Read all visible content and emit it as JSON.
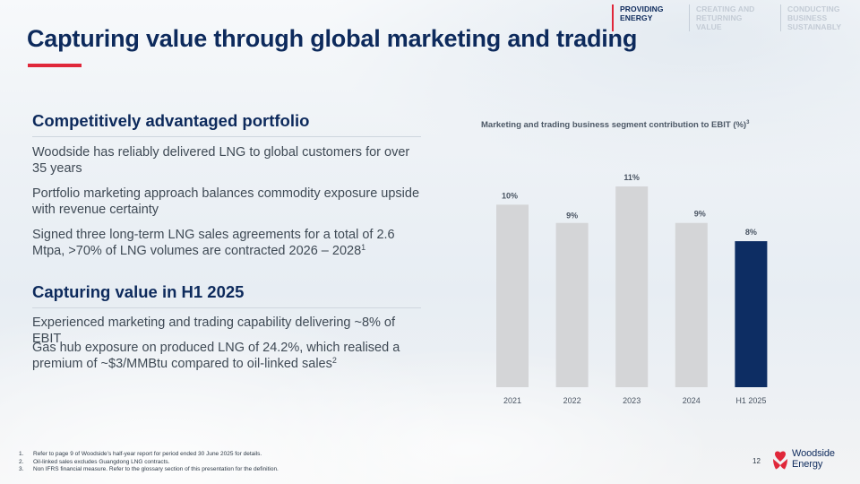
{
  "nav": {
    "items": [
      {
        "label": "PROVIDING\nENERGY",
        "active": true
      },
      {
        "label": "CREATING AND\nRETURNING VALUE",
        "active": false
      },
      {
        "label": "CONDUCTING BUSINESS\nSUSTAINABLY",
        "active": false
      }
    ]
  },
  "title": "Capturing value through global marketing and trading",
  "sections": {
    "portfolio": {
      "heading": "Competitively advantaged portfolio",
      "p1": "Woodside has reliably delivered LNG to global customers for over 35 years",
      "p2": "Portfolio marketing approach balances commodity exposure upside with revenue certainty",
      "p3": "Signed three long-term LNG sales agreements for a total of 2.6 Mtpa, >70% of LNG volumes are contracted 2026 – 2028",
      "p3_sup": "1"
    },
    "h1": {
      "heading": "Capturing value in H1 2025",
      "p1": "Experienced marketing and trading capability delivering ~8% of EBIT",
      "p2": "Gas hub exposure on produced LNG of 24.2%, which realised a premium of ~$3/MMBtu compared to oil-linked sales",
      "p2_sup": "2"
    }
  },
  "chart_data": {
    "type": "bar",
    "title": "Marketing and trading business segment contribution to EBIT (%)",
    "title_sup": "3",
    "categories": [
      "2021",
      "2022",
      "2023",
      "2024",
      "H1 2025"
    ],
    "values": [
      10,
      9,
      11,
      9,
      8
    ],
    "labels": [
      "10%",
      "9%",
      "11%",
      "9%",
      "8%"
    ],
    "highlight_index": 4,
    "colors": {
      "bar": "#d4d5d7",
      "highlight": "#0d2d63"
    },
    "xlabel": "",
    "ylabel": "",
    "ylim": [
      0,
      11
    ],
    "grid": false,
    "legend": "none"
  },
  "footnotes": [
    {
      "num": "1.",
      "text": "Refer to page 9 of Woodside’s half-year report for period ended 30 June 2025 for details."
    },
    {
      "num": "2.",
      "text": "Oil-linked sales excludes Guangdong LNG contracts."
    },
    {
      "num": "3.",
      "text": "Non IFRS financial measure. Refer to the glossary section of this presentation for the definition."
    }
  ],
  "page_number": "12",
  "logo": {
    "text": "Woodside\nEnergy"
  },
  "colors": {
    "brand_navy": "#0d2a5c",
    "accent_red": "#e0273a"
  }
}
